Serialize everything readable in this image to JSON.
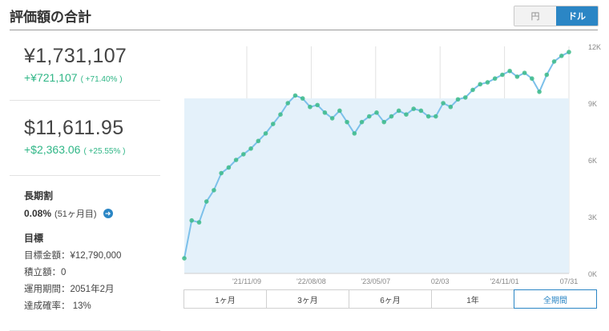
{
  "header": {
    "title": "評価額の合計"
  },
  "currency_toggle": {
    "options": [
      {
        "label": "円",
        "active": false
      },
      {
        "label": "ドル",
        "active": true
      }
    ]
  },
  "summary": {
    "yen": {
      "value": "¥1,731,107",
      "gain": "+¥721,107",
      "gain_pct": "( +71.40% )"
    },
    "usd": {
      "value": "$11,611.95",
      "gain": "+$2,363.06",
      "gain_pct": "( +25.55% )"
    }
  },
  "long_term": {
    "title": "長期割",
    "value": "0.08%",
    "sub": "(51ヶ月目)",
    "arrow": "arrow-right-icon"
  },
  "goal": {
    "title": "目標",
    "rows": [
      {
        "label": "目標金額",
        "value": "¥12,790,000"
      },
      {
        "label": "積立額",
        "value": "0"
      },
      {
        "label": "運用期間",
        "value": "2051年2月"
      },
      {
        "label": "達成確率",
        "value": " 13%"
      }
    ]
  },
  "period_tabs": [
    {
      "label": "1ヶ月",
      "selected": false
    },
    {
      "label": "3ヶ月",
      "selected": false
    },
    {
      "label": "6ヶ月",
      "selected": false
    },
    {
      "label": "1年",
      "selected": false
    },
    {
      "label": "全期間",
      "selected": true
    }
  ],
  "colors": {
    "accent": "#2b86c5",
    "gain": "#2fb686",
    "line": "#7cc0ea",
    "marker": "#3dbb8a",
    "area": "#e4f1fa"
  },
  "chart_data": {
    "type": "area",
    "x_ticks": [
      "'21/11/09",
      "'22/08/08",
      "'23/05/07",
      "02/03",
      "'24/11/01",
      "07/31"
    ],
    "y_ticks": [
      "0K",
      "3K",
      "6K",
      "9K",
      "12K"
    ],
    "ylim": [
      0,
      12000
    ],
    "grid": "vertical",
    "invested_level": 9250,
    "series": [
      {
        "values": [
          800,
          2800,
          2700,
          3800,
          4400,
          5300,
          5600,
          6000,
          6300,
          6600,
          7000,
          7400,
          7900,
          8400,
          9000,
          9400,
          9250,
          8800,
          8900,
          8500,
          8200,
          8600,
          8000,
          7400,
          8000,
          8300,
          8500,
          8000,
          8300,
          8600,
          8400,
          8700,
          8600,
          8300,
          8300,
          9000,
          8800,
          9200,
          9300,
          9700,
          10000,
          10100,
          10300,
          10500,
          10700,
          10400,
          10600,
          10300,
          9600,
          10500,
          11200,
          11500,
          11700
        ]
      }
    ]
  }
}
